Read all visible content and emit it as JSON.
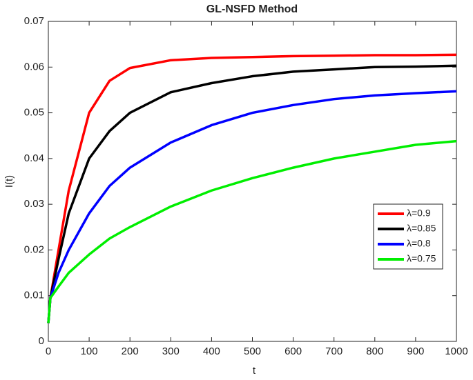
{
  "chart_data": {
    "type": "line",
    "title": "GL-NSFD Method",
    "x_label": "t",
    "y_label": "I(t)",
    "x": [
      0,
      5,
      25,
      50,
      100,
      150,
      200,
      300,
      400,
      500,
      600,
      700,
      800,
      900,
      1000
    ],
    "series": [
      {
        "name": "λ=0.9",
        "color": "#ff0000",
        "values": [
          0.004,
          0.0095,
          0.02,
          0.033,
          0.05,
          0.057,
          0.0598,
          0.0615,
          0.062,
          0.0622,
          0.0624,
          0.0625,
          0.0626,
          0.0626,
          0.0627
        ]
      },
      {
        "name": "λ=0.85",
        "color": "#000000",
        "values": [
          0.004,
          0.0095,
          0.018,
          0.028,
          0.04,
          0.046,
          0.05,
          0.0545,
          0.0565,
          0.058,
          0.059,
          0.0595,
          0.06,
          0.0601,
          0.0603
        ]
      },
      {
        "name": "λ=0.8",
        "color": "#0000ff",
        "values": [
          0.004,
          0.0095,
          0.015,
          0.02,
          0.028,
          0.034,
          0.038,
          0.0435,
          0.0473,
          0.05,
          0.0517,
          0.053,
          0.0538,
          0.0543,
          0.0547
        ]
      },
      {
        "name": "λ=0.75",
        "color": "#00ee00",
        "values": [
          0.004,
          0.0095,
          0.012,
          0.015,
          0.019,
          0.0225,
          0.025,
          0.0295,
          0.033,
          0.0357,
          0.038,
          0.04,
          0.0415,
          0.043,
          0.0438
        ]
      }
    ],
    "xlim": [
      0,
      1000
    ],
    "xticks": [
      0,
      100,
      200,
      300,
      400,
      500,
      600,
      700,
      800,
      900,
      1000
    ],
    "ylim": [
      0,
      0.07
    ],
    "yticks": [
      0,
      0.01,
      0.02,
      0.03,
      0.04,
      0.05,
      0.06,
      0.07
    ],
    "legend": "right",
    "grid": false
  }
}
